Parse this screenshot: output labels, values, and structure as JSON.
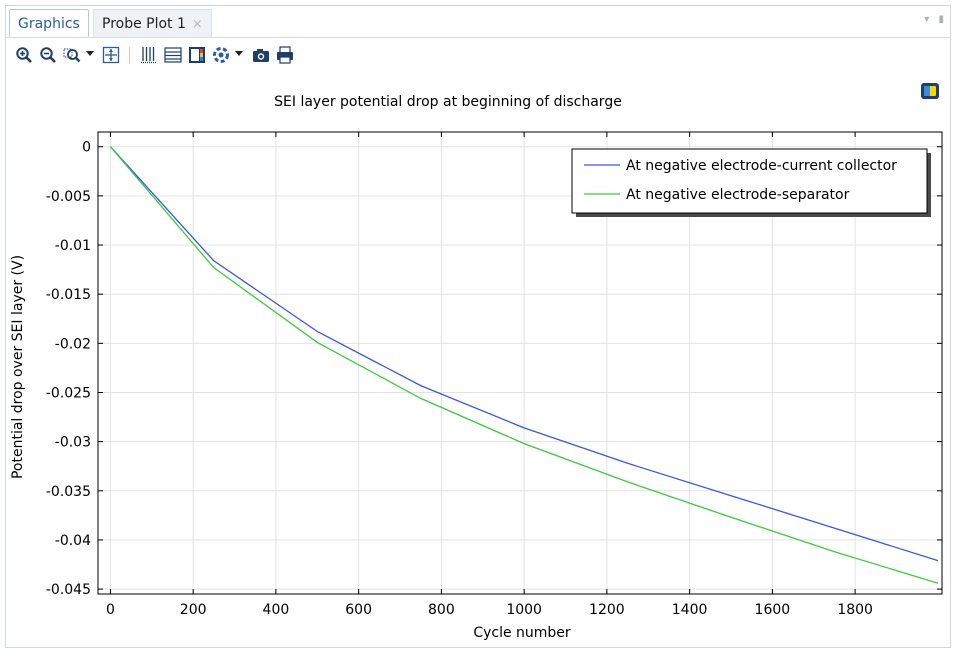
{
  "tabs": [
    {
      "label": "Graphics",
      "active": true
    },
    {
      "label": "Probe Plot 1",
      "active": false,
      "close_glyph": "×"
    }
  ],
  "tabbar_controls": [
    "minimize-icon",
    "pin-icon"
  ],
  "toolbar_icons": [
    "zoom-in-icon",
    "zoom-out-icon",
    "zoom-box-icon",
    "zoom-extents-icon",
    "grid-lines-icon",
    "table-lines-icon",
    "legend-icon",
    "scene-light-icon",
    "screenshot-icon",
    "print-icon"
  ],
  "colors": {
    "series1": "#3c55e6",
    "series2": "#3ec93e",
    "accent": "#2a5d9c"
  },
  "chart_data": {
    "type": "line",
    "title": "SEI layer potential drop at beginning of discharge",
    "xlabel": "Cycle number",
    "ylabel": "Potential drop over SEI layer (V)",
    "xlim": [
      -30,
      2010
    ],
    "ylim": [
      -0.0455,
      0.0015
    ],
    "xticks": [
      0,
      200,
      400,
      600,
      800,
      1000,
      1200,
      1400,
      1600,
      1800
    ],
    "yticks": [
      0,
      -0.005,
      -0.01,
      -0.015,
      -0.02,
      -0.025,
      -0.03,
      -0.035,
      -0.04,
      -0.045
    ],
    "ytick_labels": [
      "0",
      "-0.005",
      "-0.01",
      "-0.015",
      "-0.02",
      "-0.025",
      "-0.03",
      "-0.035",
      "-0.04",
      "-0.045"
    ],
    "grid": true,
    "legend_position": "top-right",
    "series": [
      {
        "name": "At negative electrode-current collector",
        "x": [
          0,
          250,
          500,
          750,
          1000,
          1250,
          1500,
          1750,
          2000
        ],
        "y": [
          0,
          -0.0116,
          -0.0188,
          -0.0243,
          -0.0286,
          -0.0322,
          -0.0355,
          -0.0388,
          -0.0421
        ]
      },
      {
        "name": "At negative electrode-separator",
        "x": [
          0,
          250,
          500,
          750,
          1000,
          1250,
          1500,
          1750,
          2000
        ],
        "y": [
          0,
          -0.0123,
          -0.0199,
          -0.0256,
          -0.0302,
          -0.0341,
          -0.0377,
          -0.0412,
          -0.0444
        ]
      }
    ]
  }
}
